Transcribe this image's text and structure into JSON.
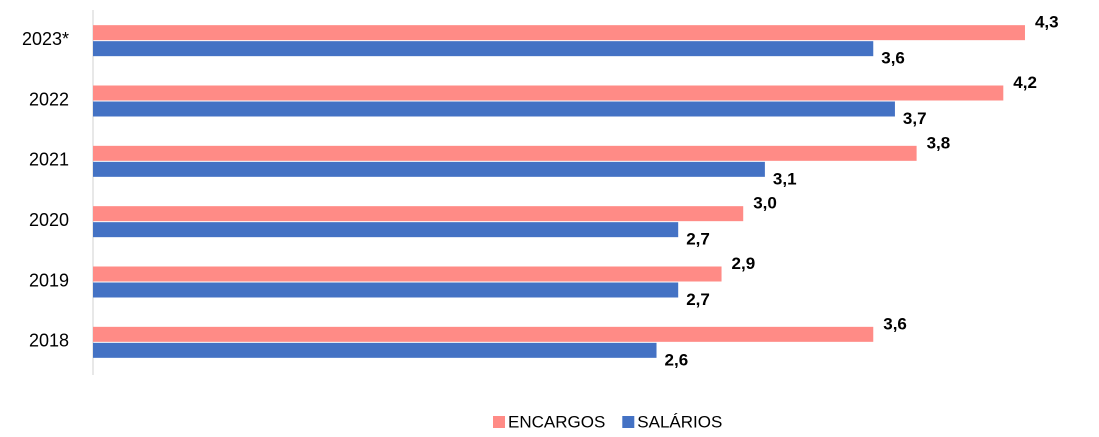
{
  "chart_data": {
    "type": "barh",
    "categories": [
      "2023*",
      "2022",
      "2021",
      "2020",
      "2019",
      "2018"
    ],
    "series": [
      {
        "name": "ENCARGOS",
        "color": "#ff8b86",
        "values": [
          4.3,
          4.2,
          3.8,
          3.0,
          2.9,
          3.6
        ],
        "value_labels": [
          "4,3",
          "4,2",
          "3,8",
          "3,0",
          "2,9",
          "3,6"
        ]
      },
      {
        "name": "SALÁRIOS",
        "color": "#4472c4",
        "values": [
          3.6,
          3.7,
          3.1,
          2.7,
          2.7,
          2.6
        ],
        "value_labels": [
          "3,6",
          "3,7",
          "3,1",
          "2,7",
          "2,7",
          "2,6"
        ]
      }
    ],
    "xlim": [
      0,
      4.6
    ],
    "legend": "bottom"
  }
}
